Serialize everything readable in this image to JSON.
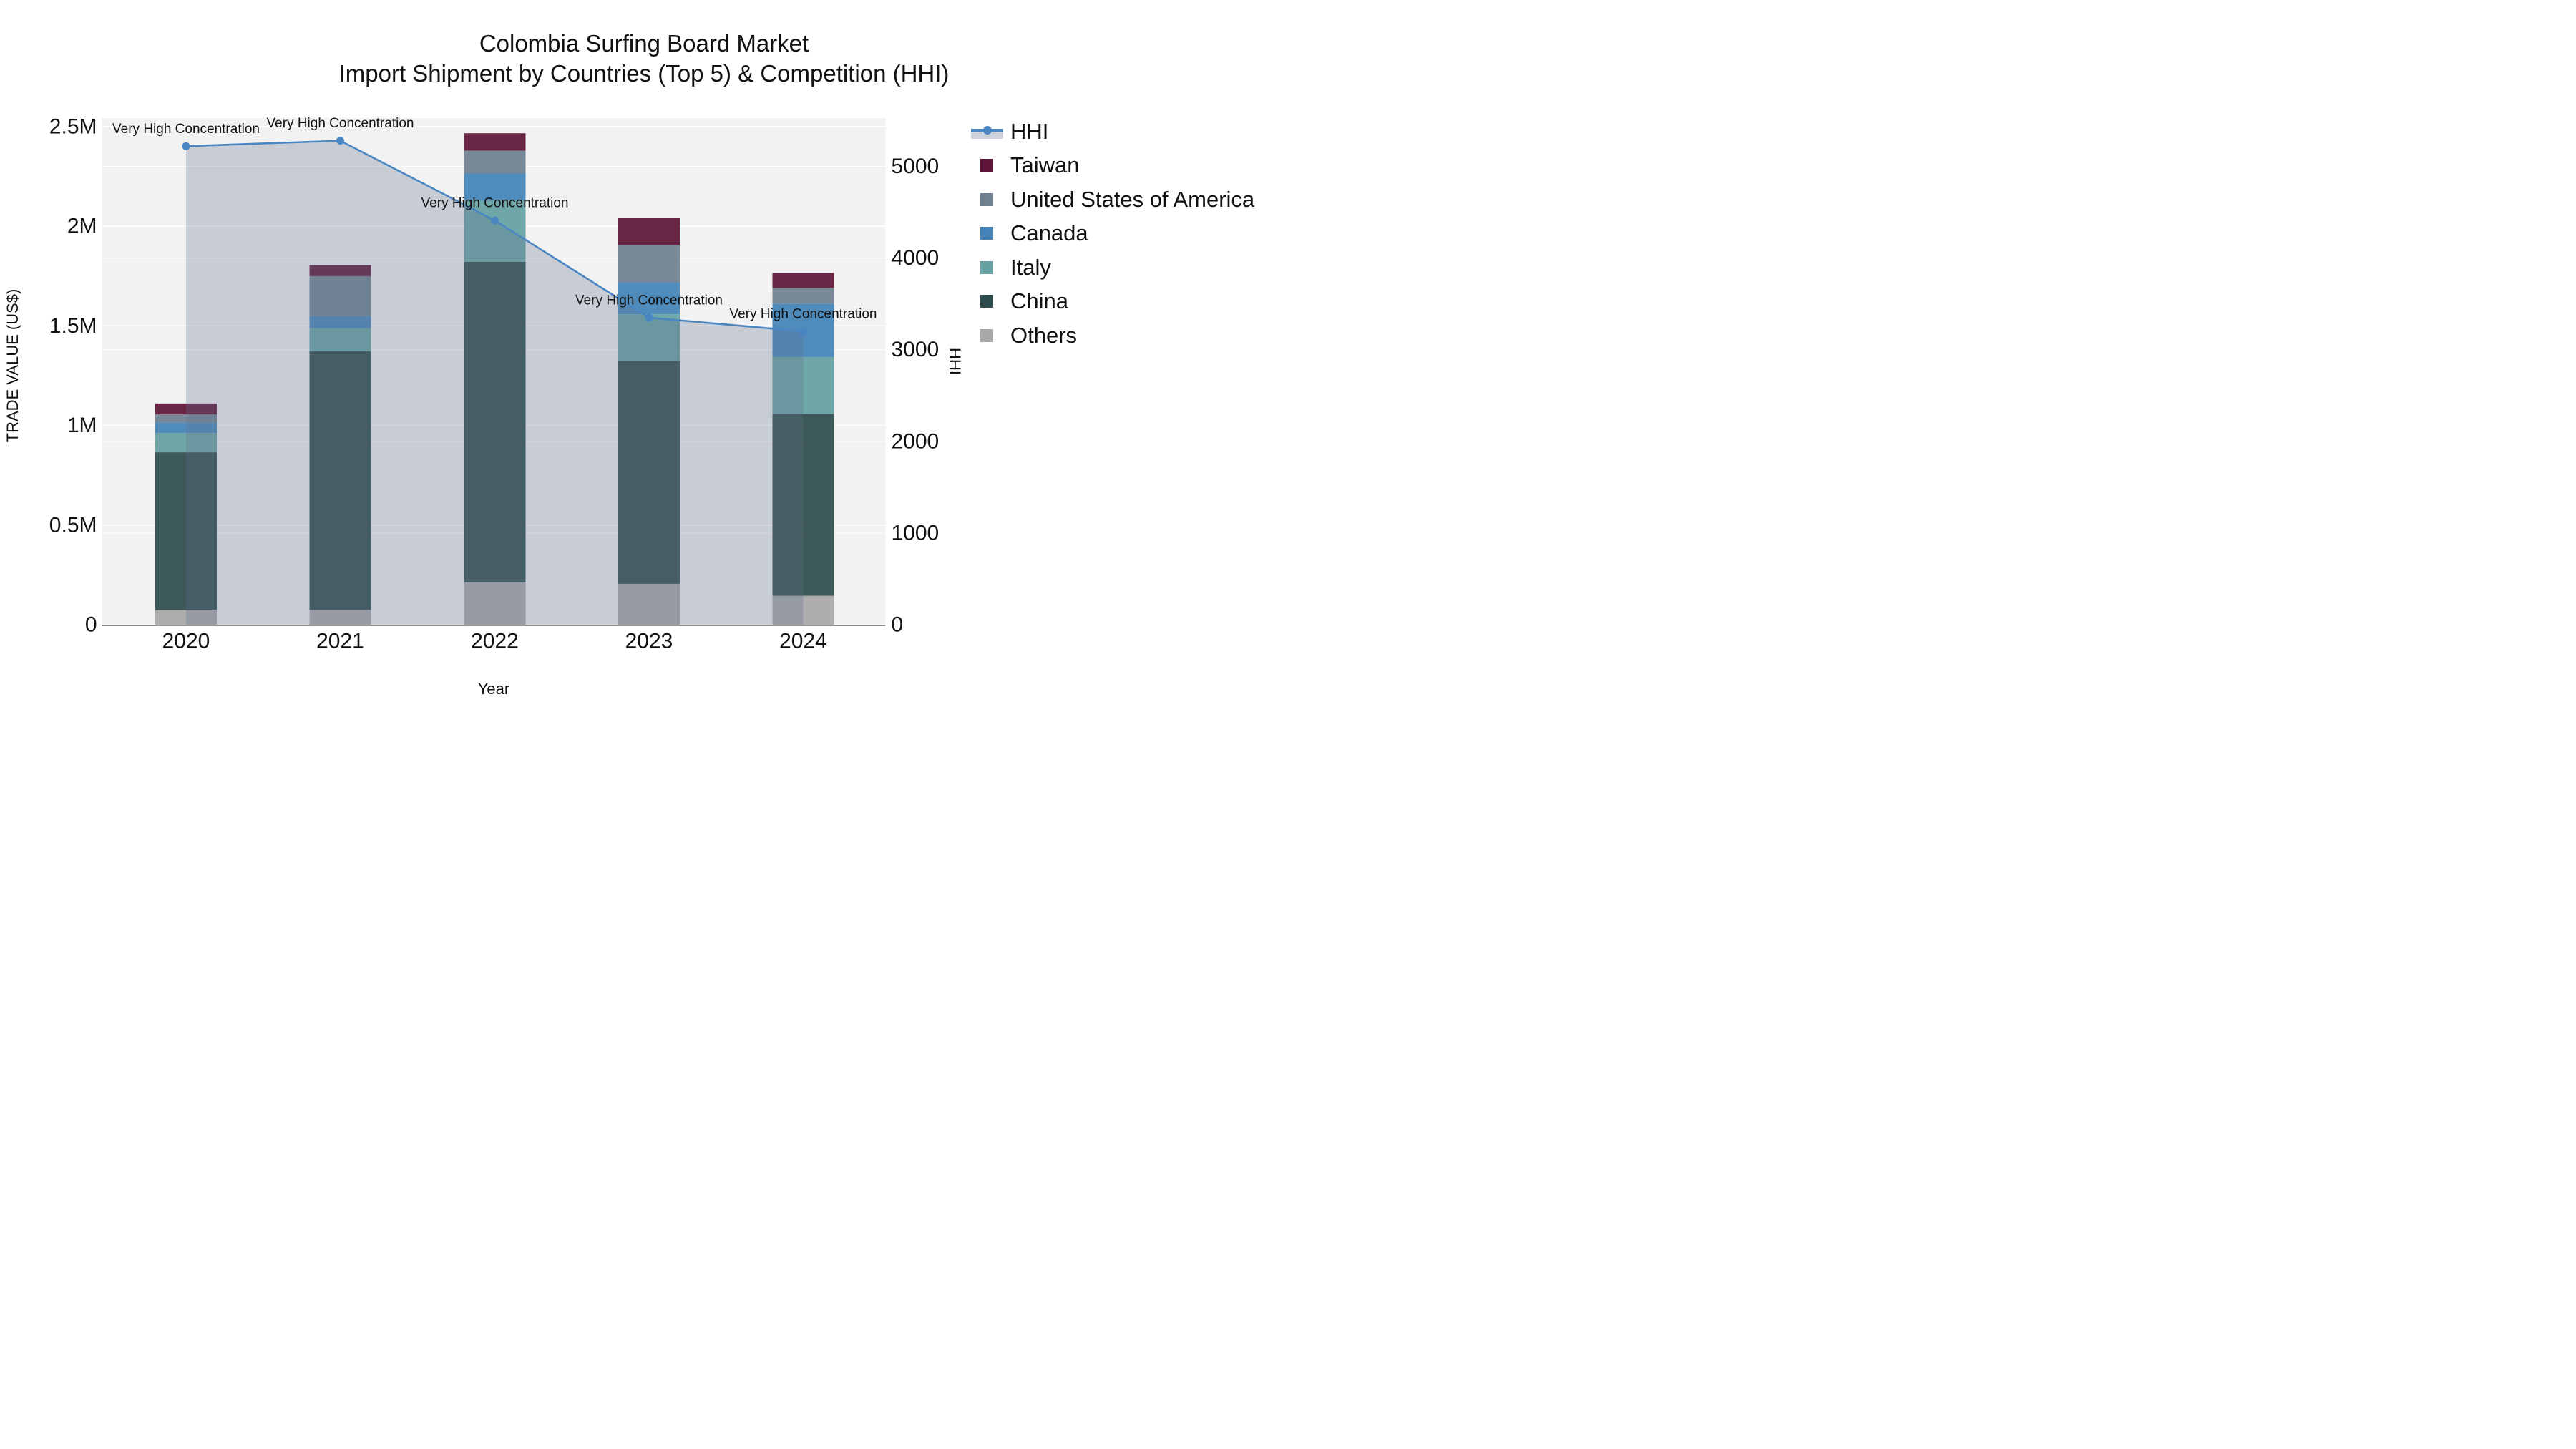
{
  "chart_data": {
    "type": "bar",
    "stacked": true,
    "title": "Colombia Surfing Board Market",
    "subtitle": "Import Shipment by Countries (Top 5) & Competition (HHI)",
    "xlabel": "Year",
    "ylabel_left": "TRADE VALUE (US$)",
    "ylabel_right": "HHI",
    "categories": [
      "2020",
      "2021",
      "2022",
      "2023",
      "2024"
    ],
    "series": [
      {
        "name": "Others",
        "color": "#a9a9a9",
        "values": [
          75000,
          74000,
          212000,
          205000,
          145000
        ]
      },
      {
        "name": "China",
        "color": "#2e4c4c",
        "values": [
          790000,
          1298000,
          1609000,
          1118000,
          913000
        ]
      },
      {
        "name": "Italy",
        "color": "#65a1a3",
        "values": [
          97000,
          116000,
          306000,
          235000,
          285000
        ]
      },
      {
        "name": "Canada",
        "color": "#4383b7",
        "values": [
          52000,
          61000,
          137000,
          160000,
          267000
        ]
      },
      {
        "name": "United States of America",
        "color": "#708090",
        "values": [
          41000,
          200000,
          115000,
          188000,
          80000
        ]
      },
      {
        "name": "Taiwan",
        "color": "#5e1537",
        "values": [
          55000,
          55000,
          87000,
          137000,
          75000
        ]
      }
    ],
    "line_series": {
      "name": "HHI",
      "color": "#4a86c2",
      "area_fill_color": "rgba(95,110,140,0.28)",
      "values": [
        5220,
        5280,
        4410,
        3350,
        3200
      ],
      "annotations": [
        "Very High Concentration",
        "Very High Concentration",
        "Very High Concentration",
        "Very High Concentration",
        "Very High Concentration"
      ]
    },
    "axis_left": {
      "ticks": [
        {
          "value": 0,
          "label": "0"
        },
        {
          "value": 500000,
          "label": "0.5M"
        },
        {
          "value": 1000000,
          "label": "1M"
        },
        {
          "value": 1500000,
          "label": "1.5M"
        },
        {
          "value": 2000000,
          "label": "2M"
        },
        {
          "value": 2500000,
          "label": "2.5M"
        }
      ],
      "range": [
        0,
        2545000
      ]
    },
    "axis_right": {
      "ticks": [
        {
          "value": 0,
          "label": "0"
        },
        {
          "value": 1000,
          "label": "1000"
        },
        {
          "value": 2000,
          "label": "2000"
        },
        {
          "value": 3000,
          "label": "3000"
        },
        {
          "value": 4000,
          "label": "4000"
        },
        {
          "value": 5000,
          "label": "5000"
        }
      ],
      "range": [
        0,
        5525
      ]
    },
    "legend_order": [
      "HHI",
      "Taiwan",
      "United States of America",
      "Canada",
      "Italy",
      "China",
      "Others"
    ],
    "grid": true,
    "legend_position": "right",
    "colors": {
      "plot_background": "#f2f2f2",
      "page_background": "#ffffff",
      "gridline": "#ffffff",
      "axis_line": "#4d4d4d",
      "text": "#111111"
    }
  }
}
